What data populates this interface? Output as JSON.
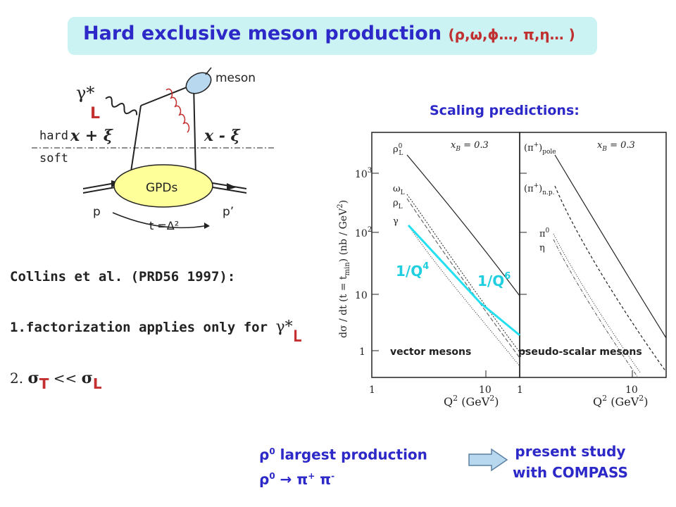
{
  "title": {
    "main": "Hard exclusive meson production",
    "mesons": "(ρ,ω,ϕ…, π,η… )"
  },
  "diagram": {
    "photon": "γ*",
    "photon_pol": "L",
    "meson": "meson",
    "hard": "hard",
    "soft": "soft",
    "x_plus": "x + ξ",
    "x_minus": "x - ξ",
    "gpds": "GPDs",
    "p": "p",
    "p_prime": "p’",
    "t_label": "t =Δ²"
  },
  "text": {
    "collins": "Collins et al. (PRD56 1997):",
    "factorization": "1.factorization applies only for ",
    "fact_photon": "γ*",
    "fact_pol": "L",
    "sigma_num": "2. ",
    "sigma_sym": "σ",
    "sigma_t": "T",
    "sigma_ll": " << ",
    "sigma_sym2": "σ",
    "sigma_l": "L",
    "scaling": "Scaling predictions:"
  },
  "plot": {
    "ylabel": "dσ / dt (t = t",
    "ylabel_sub": "min",
    "ylabel_end": ")  (nb / GeV",
    "ylabel_sup": "2",
    "ylabel_close": ")",
    "y_ticks": [
      "1",
      "10",
      "10",
      "10"
    ],
    "y_tick_sups": [
      "",
      "",
      "2",
      "3"
    ],
    "x_ticks": [
      "1",
      "10",
      "1",
      "10"
    ],
    "xlabel": "Q",
    "xlabel_sup": "2",
    "xlabel_units": " (GeV",
    "xlabel_units_sup": "2",
    "xlabel_close": ")",
    "xb": "x",
    "xb_sub": "B",
    "xb_val": " = 0.3",
    "left_curves": [
      "ρ",
      "ω",
      "ρ",
      "γ"
    ],
    "left_curve_sups": [
      "0",
      "",
      "",
      ""
    ],
    "left_curve_subs": [
      "L",
      "L",
      "L",
      ""
    ],
    "right_curves": [
      "(π",
      ")",
      "(π",
      ")",
      "π",
      "η"
    ],
    "right_pole": "pole",
    "right_np": "n.p.",
    "pi_plus_sup": "+",
    "pi0_sup": "0",
    "left_panel": "vector mesons",
    "right_panel": "pseudo-scalar mesons",
    "q4": "1/Q",
    "q4_sup": "4",
    "q6": "1/Q",
    "q6_sup": "6"
  },
  "bottom": {
    "rho0": "ρ",
    "rho0_sup": "0",
    "largest": " largest production",
    "rho0b": "ρ",
    "rho0b_sup": "0",
    "decay": " → π",
    "plus": "+",
    "pi": " π",
    "minus": "-",
    "present": "present study",
    "compass": "with COMPASS"
  },
  "colors": {
    "title_bg": "#ccf3f3",
    "blue": "#2d29c8",
    "red": "#c42f2f",
    "cyan": "#22e0f0",
    "gpd_fill": "#ffff99",
    "meson_fill": "#b8d8f0",
    "arrow_fill": "#b8d8f0"
  }
}
